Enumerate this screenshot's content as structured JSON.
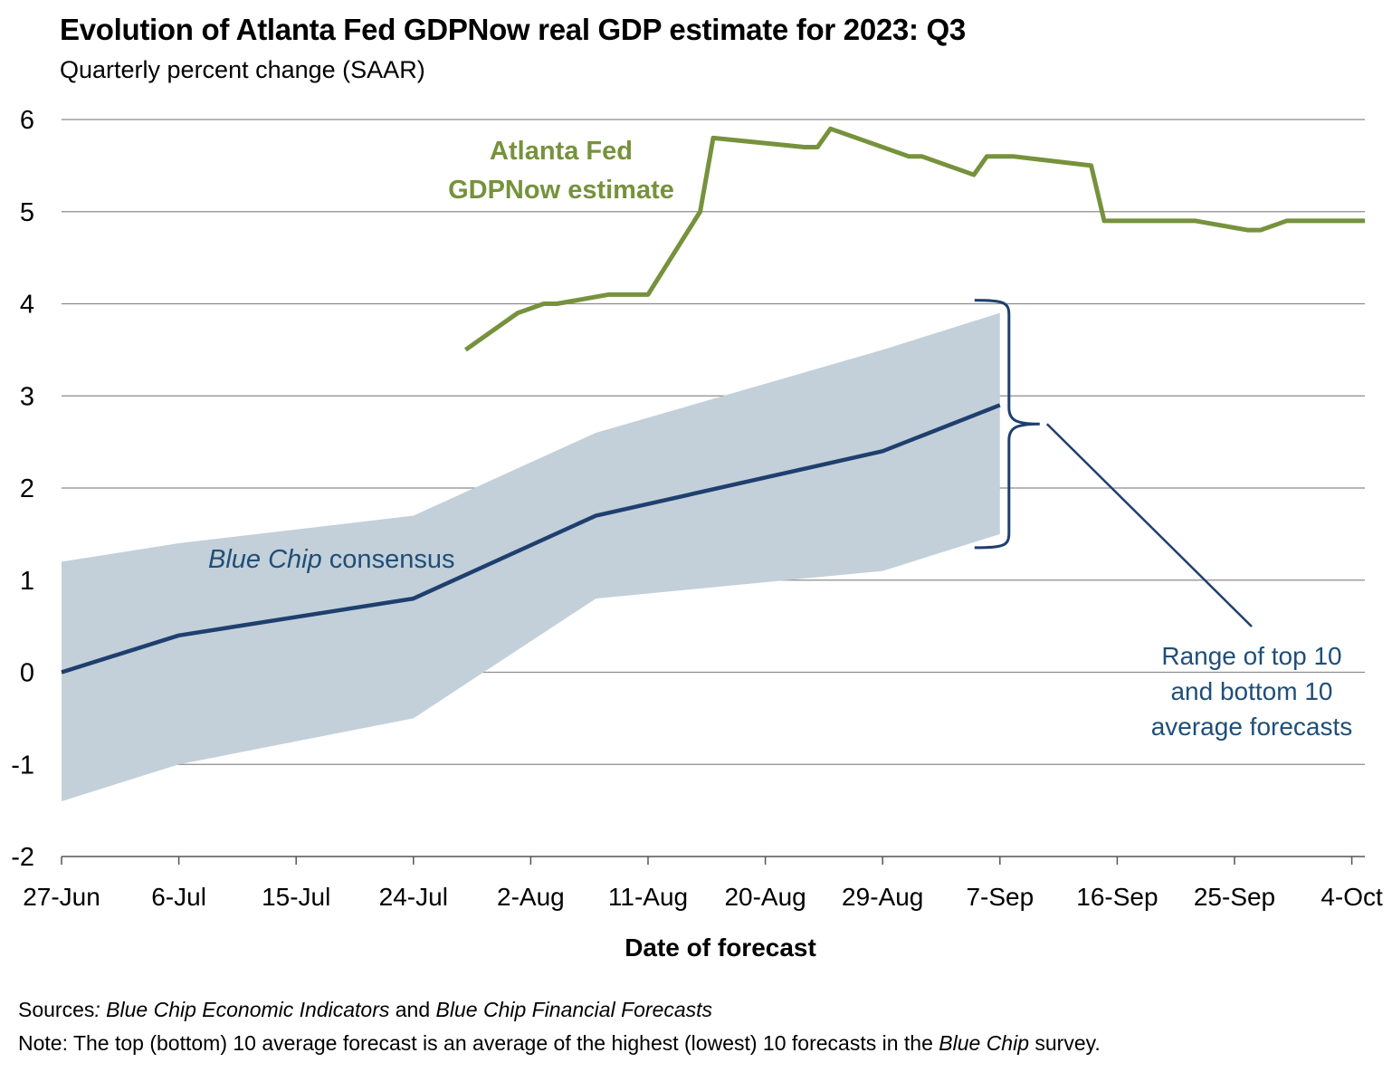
{
  "title": "Evolution of Atlanta Fed GDPNow real GDP estimate for 2023: Q3",
  "subtitle": "Quarterly percent change (SAAR)",
  "colors": {
    "gdpnow": "#76923c",
    "consensus": "#1f3f6e",
    "band": "#c3d0d9",
    "grid": "#8c8c8c",
    "annotation": "#1f4e79"
  },
  "chart_data": {
    "type": "line",
    "xlabel": "Date of forecast",
    "ylabel": "",
    "ylim": [
      -2,
      6
    ],
    "yticks": [
      -2,
      -1,
      0,
      1,
      2,
      3,
      4,
      5,
      6
    ],
    "xlim": [
      "2023-06-27",
      "2023-10-05"
    ],
    "xticks": [
      {
        "date": "2023-06-27",
        "label": "27-Jun"
      },
      {
        "date": "2023-07-06",
        "label": "6-Jul"
      },
      {
        "date": "2023-07-15",
        "label": "15-Jul"
      },
      {
        "date": "2023-07-24",
        "label": "24-Jul"
      },
      {
        "date": "2023-08-02",
        "label": "2-Aug"
      },
      {
        "date": "2023-08-11",
        "label": "11-Aug"
      },
      {
        "date": "2023-08-20",
        "label": "20-Aug"
      },
      {
        "date": "2023-08-29",
        "label": "29-Aug"
      },
      {
        "date": "2023-09-07",
        "label": "7-Sep"
      },
      {
        "date": "2023-09-16",
        "label": "16-Sep"
      },
      {
        "date": "2023-09-25",
        "label": "25-Sep"
      },
      {
        "date": "2023-10-04",
        "label": "4-Oct"
      }
    ],
    "grid": true,
    "series": [
      {
        "name": "Atlanta Fed GDPNow estimate",
        "label_lines": [
          "Atlanta Fed",
          "GDPNow estimate"
        ],
        "points": [
          [
            "2023-07-28",
            3.5
          ],
          [
            "2023-08-01",
            3.9
          ],
          [
            "2023-08-02",
            3.95
          ],
          [
            "2023-08-03",
            4.0
          ],
          [
            "2023-08-04",
            4.0
          ],
          [
            "2023-08-08",
            4.1
          ],
          [
            "2023-08-11",
            4.1
          ],
          [
            "2023-08-15",
            5.0
          ],
          [
            "2023-08-16",
            5.8
          ],
          [
            "2023-08-23",
            5.7
          ],
          [
            "2023-08-24",
            5.7
          ],
          [
            "2023-08-25",
            5.9
          ],
          [
            "2023-08-31",
            5.6
          ],
          [
            "2023-09-01",
            5.6
          ],
          [
            "2023-09-05",
            5.4
          ],
          [
            "2023-09-06",
            5.6
          ],
          [
            "2023-09-08",
            5.6
          ],
          [
            "2023-09-14",
            5.5
          ],
          [
            "2023-09-15",
            4.9
          ],
          [
            "2023-09-19",
            4.9
          ],
          [
            "2023-09-22",
            4.9
          ],
          [
            "2023-09-26",
            4.8
          ],
          [
            "2023-09-27",
            4.8
          ],
          [
            "2023-09-29",
            4.9
          ],
          [
            "2023-10-05",
            4.9
          ]
        ]
      },
      {
        "name": "Blue Chip consensus",
        "label_italic": "Blue Chip",
        "label_rest": " consensus",
        "points": [
          [
            "2023-06-27",
            0.0
          ],
          [
            "2023-07-06",
            0.4
          ],
          [
            "2023-07-24",
            0.8
          ],
          [
            "2023-08-07",
            1.7
          ],
          [
            "2023-08-29",
            2.4
          ],
          [
            "2023-09-07",
            2.9
          ]
        ]
      },
      {
        "name": "Range of top 10 and bottom 10 average forecasts",
        "type": "area-range",
        "label_lines": [
          "Range of top 10",
          "and bottom 10",
          "average forecasts"
        ],
        "points": [
          [
            "2023-06-27",
            -1.4,
            1.2
          ],
          [
            "2023-07-06",
            -1.0,
            1.4
          ],
          [
            "2023-07-24",
            -0.5,
            1.7
          ],
          [
            "2023-08-07",
            0.8,
            2.6
          ],
          [
            "2023-08-29",
            1.1,
            3.5
          ],
          [
            "2023-09-07",
            1.5,
            3.9
          ]
        ]
      }
    ]
  },
  "footer": {
    "sources_label": "Sources",
    "sources_colon": ":",
    "sources_i1": "Blue Chip Economic Indicators",
    "sources_and": " and ",
    "sources_i2": "Blue Chip Financial Forecasts",
    "note_label": "Note:",
    "note_text1": " The top (bottom) 10 average forecast is an average of the highest (lowest) 10 forecasts in the ",
    "note_italic": "Blue Chip",
    "note_text2": " survey."
  }
}
